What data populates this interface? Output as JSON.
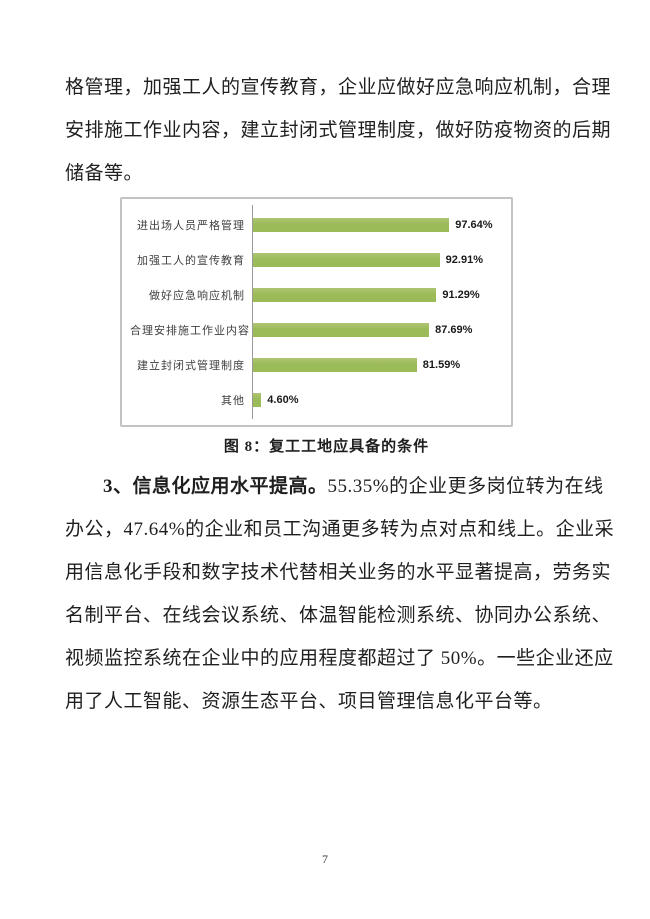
{
  "page": {
    "number": "7"
  },
  "paragraph1": {
    "lines": [
      {
        "text": "格管理，加强工人的宣传教育，企业应做好应急响应机制，合理"
      },
      {
        "text": "安排施工作业内容，建立封闭式管理制度，做好防疫物资的后期"
      },
      {
        "text": "储备等。"
      }
    ]
  },
  "figure": {
    "caption": "图 8：复工工地应具备的条件"
  },
  "chart_data": {
    "type": "bar",
    "orientation": "horizontal",
    "title": "",
    "xlabel": "",
    "ylabel": "",
    "xlim": [
      0,
      100
    ],
    "grid": false,
    "legend": false,
    "bar_color": "#9bbb59",
    "axis_color": "#9a9a9a",
    "frame_color": "#c3c3c3",
    "categories": [
      "进出场人员严格管理",
      "加强工人的宣传教育",
      "做好应急响应机制",
      "合理安排施工作业内容",
      "建立封闭式管理制度",
      "其他"
    ],
    "values": [
      97.64,
      92.91,
      91.29,
      87.69,
      81.59,
      4.6
    ],
    "value_labels": [
      "97.64%",
      "92.91%",
      "91.29%",
      "87.69%",
      "81.59%",
      "4.60%"
    ]
  },
  "paragraph2": {
    "lines": [
      {
        "bold": "3、信息化应用水平提高。",
        "text": "55.35%的企业更多岗位转为在线",
        "indent": true
      },
      {
        "text": "办公，47.64%的企业和员工沟通更多转为点对点和线上。企业采"
      },
      {
        "text": "用信息化手段和数字技术代替相关业务的水平显著提高，劳务实"
      },
      {
        "text": "名制平台、在线会议系统、体温智能检测系统、协同办公系统、"
      },
      {
        "text": "视频监控系统在企业中的应用程度都超过了 50%。一些企业还应"
      },
      {
        "text": "用了人工智能、资源生态平台、项目管理信息化平台等。"
      }
    ]
  }
}
